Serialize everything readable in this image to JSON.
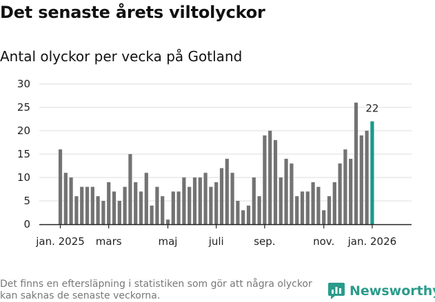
{
  "header": {
    "title": "Det senaste årets viltolyckor",
    "subtitle": "Antal olyckor per vecka på Gotland"
  },
  "footer": {
    "note": "Det finns en eftersläpning i statistiken som gör att några olyckor kan saknas de senaste veckorna.",
    "brand": "Newsworthy"
  },
  "colors": {
    "bar": "#737373",
    "highlight": "#1a9a8a",
    "grid": "#dddddd",
    "axis": "#222222"
  },
  "chart_data": {
    "type": "bar",
    "title": "Antal olyckor per vecka på Gotland",
    "xlabel": "",
    "ylabel": "",
    "ylim": [
      0,
      30
    ],
    "yticks": [
      0,
      5,
      10,
      15,
      20,
      25,
      30
    ],
    "xtick_labels": [
      {
        "label": "jan. 2025",
        "index": 0
      },
      {
        "label": "mars",
        "index": 9
      },
      {
        "label": "maj",
        "index": 20
      },
      {
        "label": "juli",
        "index": 29
      },
      {
        "label": "sep.",
        "index": 38
      },
      {
        "label": "nov.",
        "index": 49
      },
      {
        "label": "jan. 2026",
        "index": 58
      }
    ],
    "values": [
      16,
      11,
      10,
      6,
      8,
      8,
      8,
      6,
      5,
      9,
      7,
      5,
      8,
      15,
      9,
      7,
      11,
      4,
      8,
      6,
      1,
      7,
      7,
      10,
      8,
      10,
      10,
      11,
      8,
      9,
      12,
      14,
      11,
      5,
      3,
      4,
      10,
      6,
      19,
      20,
      18,
      10,
      14,
      13,
      6,
      7,
      7,
      9,
      8,
      3,
      6,
      9,
      13,
      16,
      14,
      26,
      19,
      20,
      22
    ],
    "highlight_last": true,
    "highlight_label": "22"
  }
}
